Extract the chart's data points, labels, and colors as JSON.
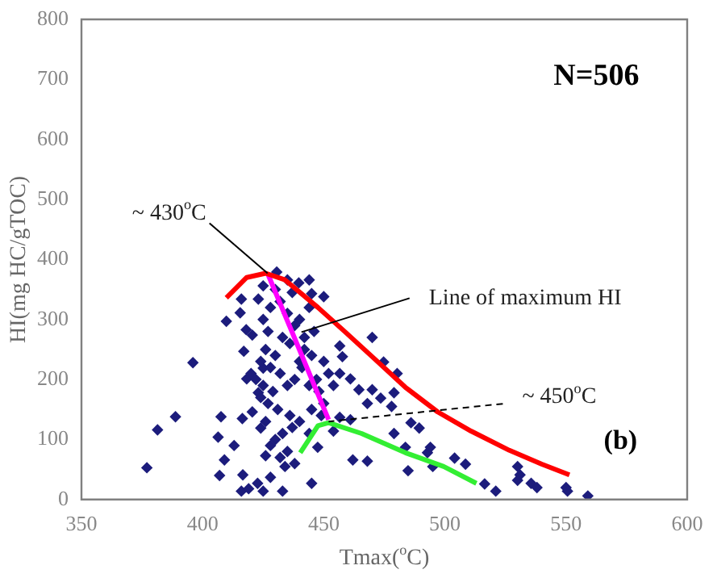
{
  "chart_data": {
    "type": "scatter",
    "xlabel": "Tmax($^{o}$C)",
    "ylabel": "HI(mg HC/gTOC)",
    "xlim": [
      350,
      600
    ],
    "xticks": [
      350,
      400,
      450,
      500,
      550,
      600
    ],
    "ylim": [
      0,
      800
    ],
    "yticks": [
      0,
      100,
      200,
      300,
      400,
      500,
      600,
      700,
      800
    ],
    "grid": false,
    "legend": false,
    "series": [
      {
        "color": "#1c1c7c",
        "marker": "diamond",
        "x": [
          377,
          381.4,
          388.8,
          396,
          409.8,
          407.6,
          406.4,
          409,
          407,
          413,
          415.5,
          416,
          417,
          416.4,
          418.2,
          420,
          416.6,
          416,
          419,
          422.7,
          425,
          428,
          433,
          434,
          426,
          424,
          420.5,
          423,
          425,
          420.5,
          418,
          423,
          425,
          430.6,
          435,
          439.7,
          444,
          445,
          450,
          445,
          447.5,
          444,
          454,
          456.6,
          457.7,
          456.6,
          461,
          464.5,
          468,
          470,
          470,
          473.5,
          474.7,
          480.3,
          479,
          478,
          479,
          483.7,
          486,
          489.4,
          492.8,
          494,
          495,
          484.8,
          462,
          468,
          461,
          456.6,
          504,
          508.5,
          516.4,
          521,
          530,
          531,
          530,
          535.6,
          538,
          550,
          550.6,
          559,
          430,
          432,
          428,
          435,
          440,
          438,
          425,
          427,
          433,
          436,
          442,
          445,
          440,
          430,
          426,
          424,
          428,
          432,
          438,
          444,
          448,
          435,
          429,
          425,
          422,
          427,
          431,
          436,
          440,
          445,
          450,
          447,
          452,
          454,
          450,
          437,
          433,
          430,
          428,
          435,
          432,
          438,
          426,
          424,
          442,
          446,
          444,
          437,
          441,
          449
        ],
        "values": [
          53,
          116,
          138,
          228,
          297,
          138,
          104,
          66,
          40,
          90,
          311,
          334,
          247,
          135,
          201,
          210,
          41,
          14,
          18,
          27,
          14,
          37,
          14,
          55,
          73,
          119,
          146,
          178,
          219,
          274,
          283,
          334,
          356,
          379,
          366,
          361,
          366,
          343,
          338,
          27,
          87,
          110,
          114,
          256,
          238,
          210,
          201,
          183,
          160,
          183,
          270,
          169,
          229,
          210,
          178,
          155,
          110,
          87,
          128,
          119,
          78,
          87,
          55,
          48,
          66,
          64,
          133,
          137,
          69,
          59,
          26,
          14,
          55,
          41,
          32,
          27,
          20,
          20,
          14,
          6,
          350,
          330,
          320,
          310,
          300,
          290,
          300,
          280,
          270,
          260,
          250,
          240,
          230,
          240,
          250,
          230,
          220,
          210,
          200,
          190,
          180,
          190,
          180,
          190,
          200,
          160,
          150,
          140,
          130,
          150,
          160,
          200,
          210,
          190,
          230,
          120,
          110,
          100,
          90,
          80,
          70,
          60,
          130,
          170,
          270,
          280,
          320,
          345,
          220,
          140
        ]
      },
      {
        "type": "line",
        "marker": "none",
        "color": "#ff0000",
        "x": [
          409.8,
          418.2,
          426,
          434,
          447.6,
          458.9,
          470,
          483.7,
          497,
          510.8,
          526.6,
          540,
          551.4
        ],
        "values": [
          336,
          370,
          377,
          366,
          320,
          279,
          238,
          187,
          146,
          114,
          82,
          59,
          41
        ]
      },
      {
        "type": "line",
        "marker": "none",
        "color": "#ff00ff",
        "x": [
          426.8,
          452
        ],
        "values": [
          377,
          133
        ]
      },
      {
        "type": "line",
        "marker": "none",
        "color": "#33ee33",
        "x": [
          440.3,
          447.6,
          452,
          465.6,
          483.7,
          499.5,
          513
        ],
        "values": [
          78,
          123,
          128,
          110,
          78,
          55,
          27
        ]
      }
    ],
    "annotations": [
      {
        "text": "~ 430$^{o}$C",
        "x": 426.8,
        "y": 377
      },
      {
        "text": "Line of maximum HI",
        "x": 440.8,
        "y": 279
      },
      {
        "text": "~ 450$^{o}$C",
        "x": 452,
        "y": 130
      },
      "N=506",
      "(b)"
    ]
  }
}
